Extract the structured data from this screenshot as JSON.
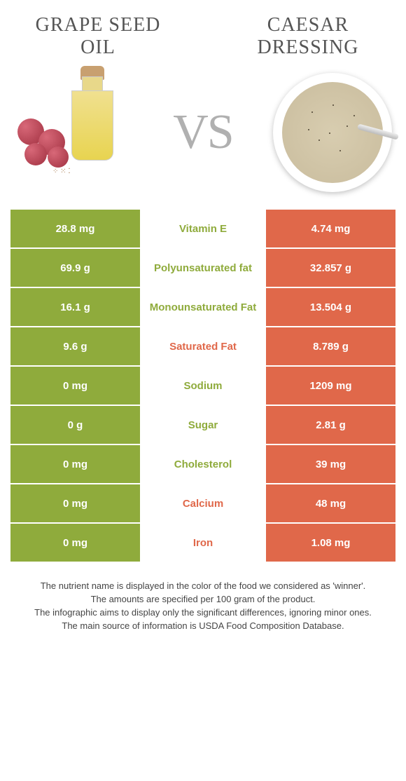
{
  "left_food": {
    "name": "GRAPE SEED\nOIL",
    "color": "#8fab3c"
  },
  "right_food": {
    "name": "CAESAR\nDRESSING",
    "color": "#e0684a"
  },
  "vs_label": "VS",
  "colors": {
    "left_bg": "#8fab3c",
    "right_bg": "#e0684a",
    "mid_bg": "#ffffff",
    "text_white": "#ffffff",
    "title_gray": "#555555",
    "footnote_gray": "#444444"
  },
  "nutrients": [
    {
      "name": "Vitamin E",
      "left": "28.8 mg",
      "right": "4.74 mg",
      "winner": "left"
    },
    {
      "name": "Polyunsaturated fat",
      "left": "69.9 g",
      "right": "32.857 g",
      "winner": "left"
    },
    {
      "name": "Monounsaturated Fat",
      "left": "16.1 g",
      "right": "13.504 g",
      "winner": "left"
    },
    {
      "name": "Saturated Fat",
      "left": "9.6 g",
      "right": "8.789 g",
      "winner": "right"
    },
    {
      "name": "Sodium",
      "left": "0 mg",
      "right": "1209 mg",
      "winner": "left"
    },
    {
      "name": "Sugar",
      "left": "0 g",
      "right": "2.81 g",
      "winner": "left"
    },
    {
      "name": "Cholesterol",
      "left": "0 mg",
      "right": "39 mg",
      "winner": "left"
    },
    {
      "name": "Calcium",
      "left": "0 mg",
      "right": "48 mg",
      "winner": "right"
    },
    {
      "name": "Iron",
      "left": "0 mg",
      "right": "1.08 mg",
      "winner": "right"
    }
  ],
  "footnotes": [
    "The nutrient name is displayed in the color of the food we considered as 'winner'.",
    "The amounts are specified per 100 gram of the product.",
    "The infographic aims to display only the significant differences, ignoring minor ones.",
    "The main source of information is USDA Food Composition Database."
  ]
}
